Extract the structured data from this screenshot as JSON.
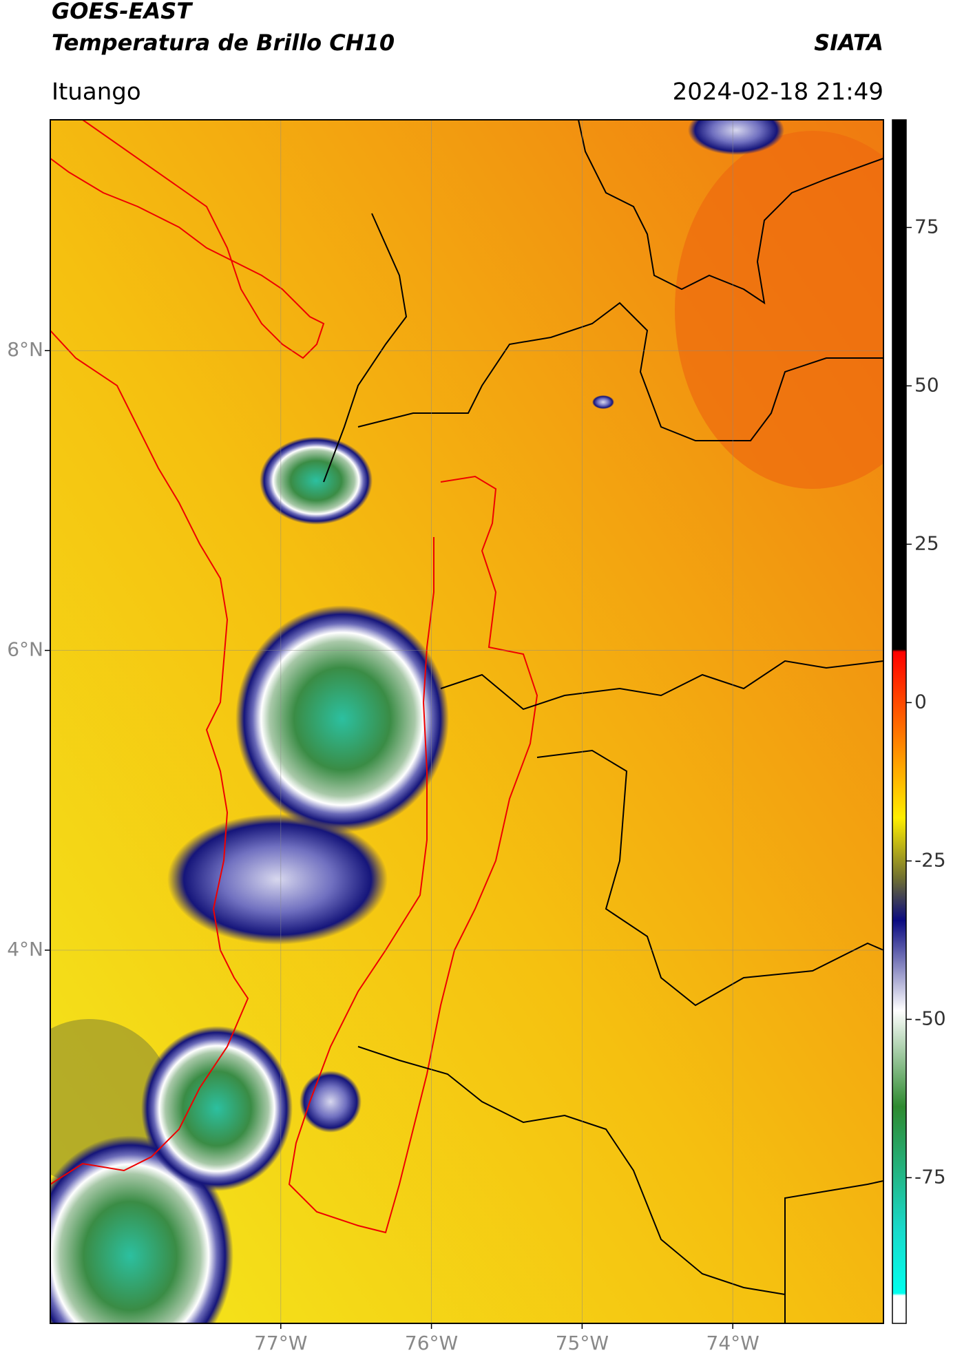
{
  "header": {
    "title": "GOES-EAST",
    "subtitle": "Temperatura de Brillo CH10",
    "source": "SIATA",
    "location": "Ituango",
    "datetime": "2024-02-18 21:49"
  },
  "map": {
    "lonlim": [
      -78.53,
      -73.0
    ],
    "latlim": [
      1.51,
      9.54
    ],
    "lat_ticks": [
      {
        "value": 8,
        "label": "8°N"
      },
      {
        "value": 6,
        "label": "6°N"
      },
      {
        "value": 4,
        "label": "4°N"
      }
    ],
    "lon_ticks": [
      {
        "value": -77,
        "label": "77°W"
      },
      {
        "value": -76,
        "label": "76°W"
      },
      {
        "value": -75,
        "label": "75°W"
      },
      {
        "value": -74,
        "label": "74°W"
      }
    ],
    "grid": true
  },
  "colorbar": {
    "lim": [
      -98,
      92
    ],
    "ticks": [
      75,
      50,
      25,
      0,
      -25,
      -50,
      -75
    ]
  }
}
